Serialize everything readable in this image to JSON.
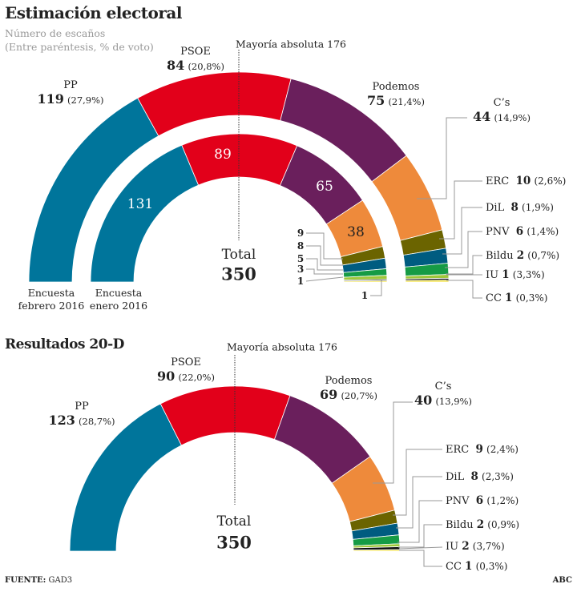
{
  "header": {
    "title": "Estimación electoral",
    "subtitle_1": "Número de escaños",
    "subtitle_2": "(Entre paréntesis, % de voto)"
  },
  "colors": {
    "PP": "#00759b",
    "PSOE": "#e2001a",
    "Podemos": "#6a1f5c",
    "Cs": "#ee8a3b",
    "ERC": "#6b6400",
    "DiL": "#005c80",
    "PNV": "#169b45",
    "Bildu": "#9fc73a",
    "IU": "#111111",
    "CC": "#f3e23c"
  },
  "chart_data": [
    {
      "type": "pie",
      "variant": "half-donut",
      "name": "Encuesta febrero 2016",
      "total": 350,
      "majority": 176,
      "categories": [
        "PP",
        "PSOE",
        "Podemos",
        "Cs",
        "ERC",
        "DiL",
        "PNV",
        "Bildu",
        "IU",
        "CC"
      ],
      "values": [
        119,
        84,
        75,
        44,
        10,
        8,
        6,
        2,
        1,
        1
      ],
      "labels": [
        "PP",
        "PSOE",
        "Podemos",
        "C’s",
        "ERC",
        "DiL",
        "PNV",
        "Bildu",
        "IU",
        "CC"
      ],
      "vote_pct": [
        "27,9%",
        "20,8%",
        "21,4%",
        "14,9%",
        "2,6%",
        "1,9%",
        "1,4%",
        "0,7%",
        "3,3%",
        "0,3%"
      ]
    },
    {
      "type": "pie",
      "variant": "half-donut",
      "name": "Encuesta enero 2016",
      "total": 350,
      "categories": [
        "PP",
        "PSOE",
        "Podemos",
        "Cs",
        "ERC",
        "DiL",
        "PNV",
        "Bildu",
        "IU",
        "CC"
      ],
      "values": [
        131,
        89,
        65,
        38,
        9,
        8,
        5,
        3,
        1,
        1
      ]
    },
    {
      "type": "pie",
      "variant": "half-donut",
      "name": "Resultados 20-D",
      "total": 350,
      "majority": 176,
      "categories": [
        "PP",
        "PSOE",
        "Podemos",
        "Cs",
        "ERC",
        "DiL",
        "PNV",
        "Bildu",
        "IU",
        "CC"
      ],
      "values": [
        123,
        90,
        69,
        40,
        9,
        8,
        6,
        2,
        2,
        1
      ],
      "labels": [
        "PP",
        "PSOE",
        "Podemos",
        "C’s",
        "ERC",
        "DiL",
        "PNV",
        "Bildu",
        "IU",
        "CC"
      ],
      "vote_pct": [
        "28,7%",
        "22,0%",
        "20,7%",
        "13,9%",
        "2,4%",
        "2,3%",
        "1,2%",
        "0,9%",
        "3,7%",
        "0,3%"
      ]
    }
  ],
  "top": {
    "majority_label": "Mayoría absoluta 176",
    "total_label": "Total",
    "total_value": "350",
    "cap_feb_1": "Encuesta",
    "cap_feb_2": "febrero 2016",
    "cap_jan_1": "Encuesta",
    "cap_jan_2": "enero 2016",
    "outer": {
      "pp_v": "119",
      "pp_p": "(27,9%)",
      "psoe_v": "84",
      "psoe_p": "(20,8%)",
      "pod_v": "75",
      "pod_p": "(21,4%)",
      "cs_v": "44",
      "cs_p": "(14,9%)",
      "erc_v": "10",
      "erc_p": "(2,6%)",
      "dil_v": "8",
      "dil_p": "(1,9%)",
      "pnv_v": "6",
      "pnv_p": "(1,4%)",
      "bildu_v": "2",
      "bildu_p": "(0,7%)",
      "iu_v": "1",
      "iu_p": "(3,3%)",
      "cc_v": "1",
      "cc_p": "(0,3%)"
    },
    "inner": {
      "pp": "131",
      "psoe": "89",
      "pod": "65",
      "cs": "38",
      "erc": "9",
      "dil": "8",
      "pnv": "5",
      "bildu": "3",
      "iu": "1",
      "cc": "1"
    }
  },
  "bottom": {
    "title": "Resultados 20-D",
    "majority_label": "Mayoría absoluta 176",
    "total_label": "Total",
    "total_value": "350",
    "pp_v": "123",
    "pp_p": "(28,7%)",
    "psoe_v": "90",
    "psoe_p": "(22,0%)",
    "pod_v": "69",
    "pod_p": "(20,7%)",
    "cs_v": "40",
    "cs_p": "(13,9%)",
    "erc_v": "9",
    "erc_p": "(2,4%)",
    "dil_v": "8",
    "dil_p": "(2,3%)",
    "pnv_v": "6",
    "pnv_p": "(1,2%)",
    "bildu_v": "2",
    "bildu_p": "(0,9%)",
    "iu_v": "2",
    "iu_p": "(3,7%)",
    "cc_v": "1",
    "cc_p": "(0,3%)"
  },
  "names": {
    "pp": "PP",
    "psoe": "PSOE",
    "pod": "Podemos",
    "cs": "C’s",
    "erc": "ERC",
    "dil": "DiL",
    "pnv": "PNV",
    "bildu": "Bildu",
    "iu": "IU",
    "cc": "CC"
  },
  "footer": {
    "source_label": "FUENTE:",
    "source": "GAD3",
    "brand": "ABC"
  }
}
